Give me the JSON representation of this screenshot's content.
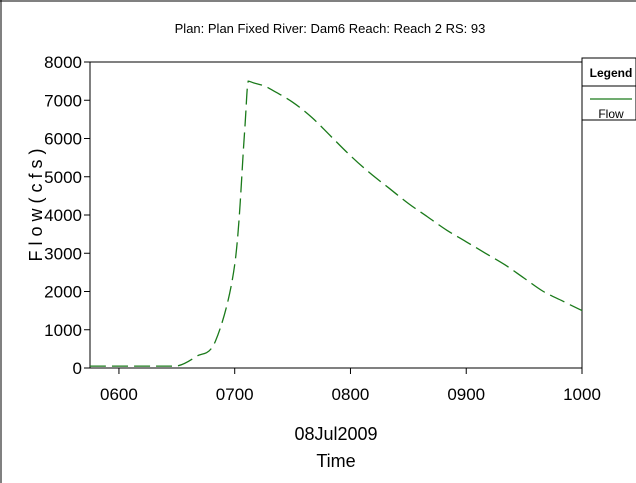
{
  "chart_data": {
    "type": "line",
    "title": "Plan: Plan Fixed   River: Dam6   Reach: Reach 2   RS: 93",
    "xlabel": "Time",
    "x_date_label": "08Jul2009",
    "ylabel": "F l o w   ( c f s )",
    "xlim": [
      "0545",
      "1000"
    ],
    "ylim": [
      0,
      8000
    ],
    "x_ticks": [
      "0600",
      "0700",
      "0800",
      "0900",
      "1000"
    ],
    "y_ticks": [
      "0",
      "1000",
      "2000",
      "3000",
      "4000",
      "5000",
      "6000",
      "7000",
      "8000"
    ],
    "grid": false,
    "legend_position": "top-right",
    "legend_title": "Legend",
    "series": [
      {
        "name": "Flow",
        "color": "#1a7a1a",
        "style": "dashed",
        "x": [
          "0545",
          "0617",
          "0630",
          "0640",
          "0650",
          "0700",
          "0705",
          "0707",
          "0710",
          "0715",
          "0720",
          "0730",
          "0740",
          "0750",
          "0800",
          "0810",
          "0820",
          "0830",
          "0840",
          "0850",
          "0900",
          "0910",
          "0920",
          "0930",
          "0940",
          "0950",
          "1000"
        ],
        "values": [
          50,
          50,
          50,
          300,
          700,
          2700,
          6100,
          7500,
          7450,
          7380,
          7250,
          6950,
          6550,
          6050,
          5550,
          5100,
          4700,
          4300,
          3950,
          3600,
          3300,
          3000,
          2700,
          2350,
          2000,
          1750,
          1500
        ]
      }
    ]
  }
}
